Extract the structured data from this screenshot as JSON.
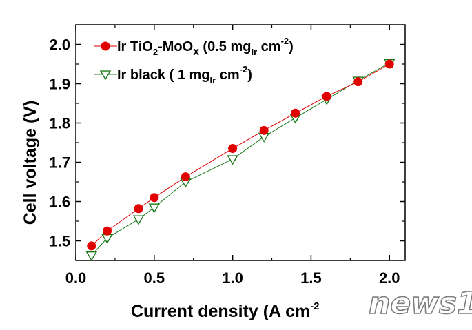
{
  "chart_data": {
    "type": "line",
    "xlabel": "Current density (A cm",
    "xlabel_sup": "-2",
    "ylabel": "Cell voltage (V)",
    "xlim": [
      0.0,
      2.1
    ],
    "ylim": [
      1.45,
      2.05
    ],
    "x_ticks": [
      "0.0",
      "0.5",
      "1.0",
      "1.5",
      "2.0"
    ],
    "y_ticks": [
      "1.5",
      "1.6",
      "1.7",
      "1.8",
      "1.9",
      "2.0"
    ],
    "grid": false,
    "legend_position": "top-left",
    "series": [
      {
        "name": "Ir TiO2-MoOX (0.5 mgIr cm-2)",
        "color": "#e00000",
        "marker": "filled-circle",
        "x": [
          0.1,
          0.2,
          0.4,
          0.5,
          0.7,
          1.0,
          1.2,
          1.4,
          1.6,
          1.8,
          2.0
        ],
        "y": [
          1.487,
          1.525,
          1.582,
          1.61,
          1.663,
          1.735,
          1.781,
          1.825,
          1.868,
          1.905,
          1.95
        ]
      },
      {
        "name": "Ir black ( 1 mgIr cm-2)",
        "color": "#1a7a1a",
        "marker": "open-triangle-down",
        "x": [
          0.1,
          0.2,
          0.4,
          0.5,
          0.7,
          1.0,
          1.2,
          1.4,
          1.6,
          1.8,
          2.0
        ],
        "y": [
          1.463,
          1.507,
          1.555,
          1.585,
          1.65,
          1.708,
          1.765,
          1.813,
          1.86,
          1.908,
          1.953
        ]
      }
    ],
    "legend": [
      {
        "parts": [
          [
            "Ir TiO",
            ""
          ],
          [
            "2",
            "sub"
          ],
          [
            "-MoO",
            ""
          ],
          [
            "X",
            "sub"
          ],
          [
            " (0.5 mg",
            ""
          ],
          [
            "Ir",
            "sub"
          ],
          [
            " cm",
            ""
          ],
          [
            "-2",
            "sup"
          ],
          [
            ")",
            ""
          ]
        ]
      },
      {
        "parts": [
          [
            "Ir black ( 1 mg",
            ""
          ],
          [
            "Ir",
            "sub"
          ],
          [
            " cm",
            ""
          ],
          [
            "-2",
            "sup"
          ],
          [
            ")",
            ""
          ]
        ]
      }
    ]
  },
  "watermark": "news1"
}
